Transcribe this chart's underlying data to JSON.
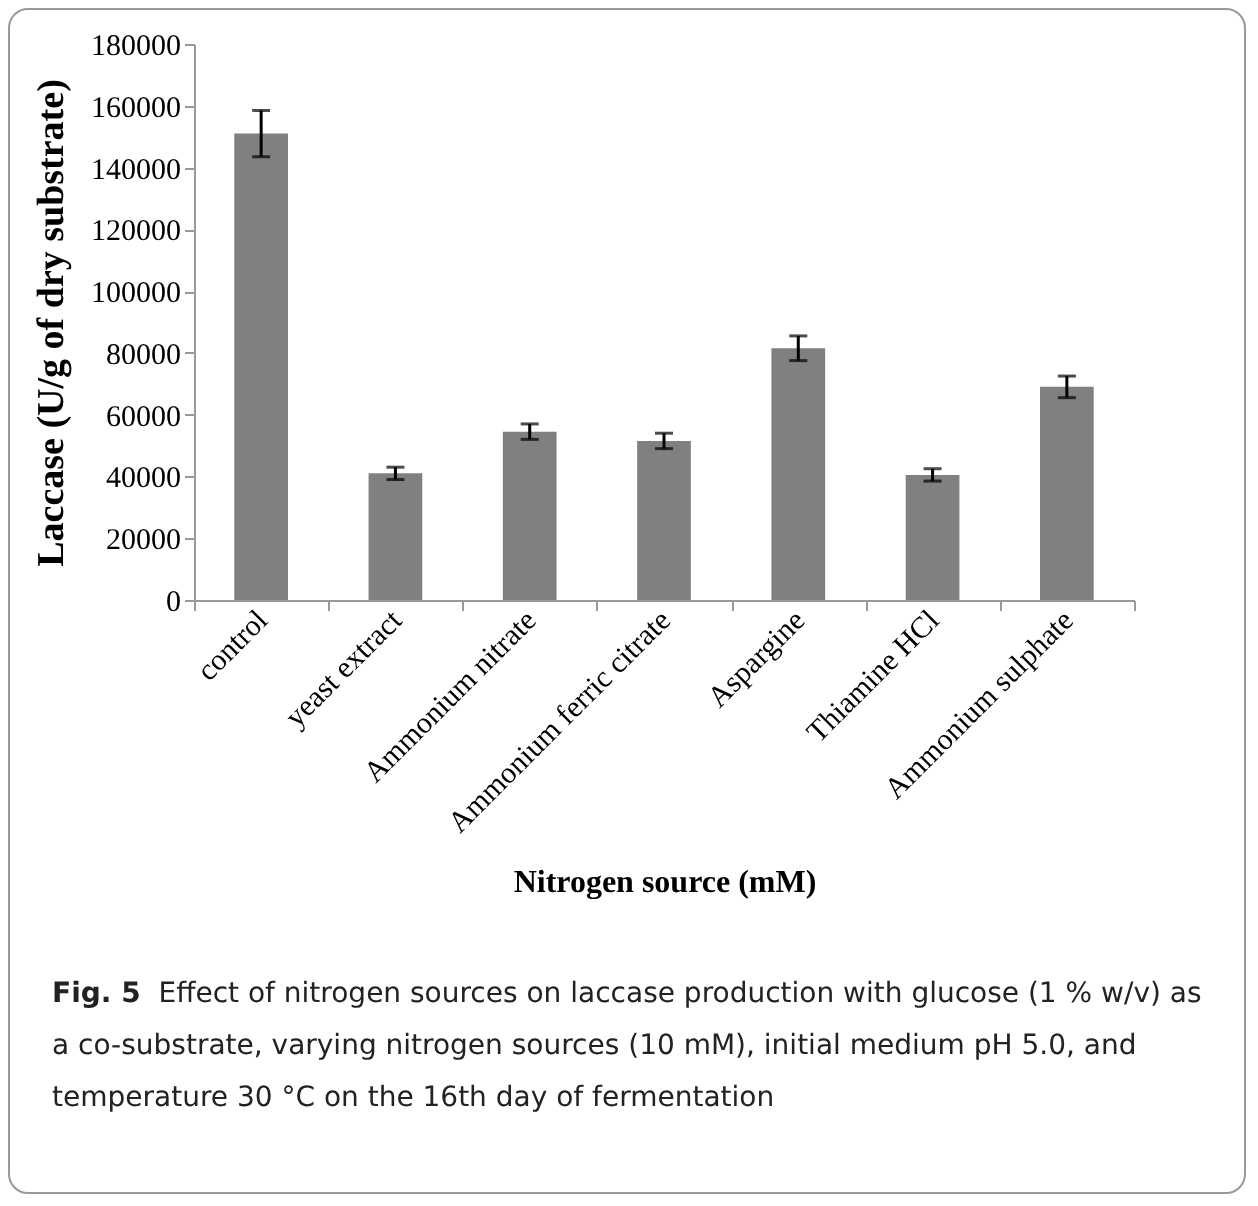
{
  "chart_data": {
    "type": "bar",
    "xlabel": "Nitrogen source (mM)",
    "ylabel": "Laccase (U/g of dry substrate)",
    "categories": [
      "control",
      "yeast extract",
      "Ammonium nitrate",
      "Ammonium ferric citrate",
      "Aspargine",
      "Thiamine HCl",
      "Ammonium sulphate"
    ],
    "values": [
      151000,
      41000,
      54500,
      51500,
      81500,
      40500,
      69000
    ],
    "errors": [
      7500,
      2000,
      2500,
      2500,
      4000,
      2000,
      3500
    ],
    "color": "#808080",
    "ylim": [
      0,
      180000
    ],
    "yticks": [
      0,
      20000,
      40000,
      60000,
      80000,
      100000,
      120000,
      140000,
      160000,
      180000
    ],
    "grid": false,
    "annotations": [
      "Fig. 5  Effect of nitrogen sources on laccase production with glucose (1 % w/v) as a co-substrate, varying nitrogen sources (10 mM), initial medium pH 5.0, and temperature 30 °C on the 16th day of fermentation"
    ]
  }
}
